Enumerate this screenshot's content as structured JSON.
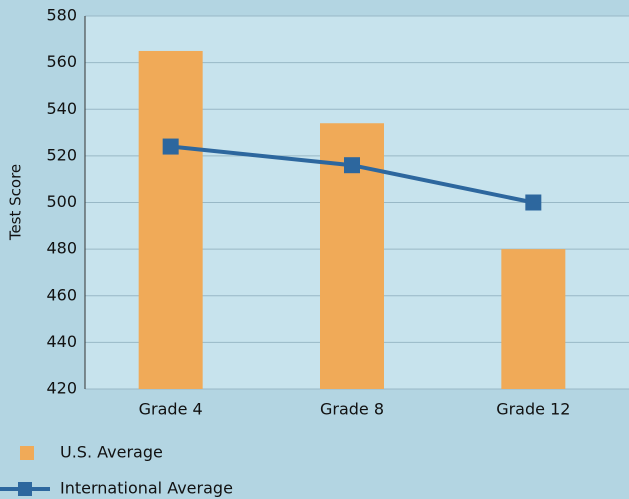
{
  "chart_data": {
    "type": "bar",
    "categories": [
      "Grade 4",
      "Grade 8",
      "Grade 12"
    ],
    "y_label": "Test Score",
    "ylim": [
      420,
      580
    ],
    "yticks": [
      420,
      440,
      460,
      480,
      500,
      520,
      540,
      560,
      580
    ],
    "grid": true,
    "series": [
      {
        "name": "U.S. Average",
        "type": "bar",
        "color": "#f0aa58",
        "values": [
          565,
          534,
          480
        ]
      },
      {
        "name": "International Average",
        "type": "line",
        "color": "#2d679e",
        "values": [
          524,
          516,
          500
        ]
      }
    ]
  }
}
